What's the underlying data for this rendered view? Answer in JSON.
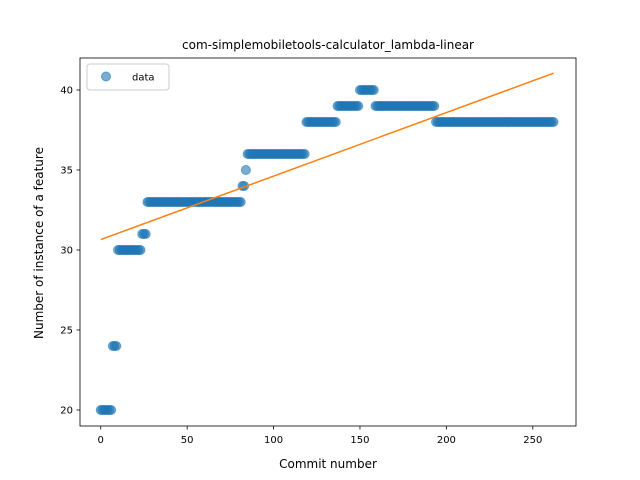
{
  "chart_data": {
    "type": "scatter",
    "title": "com-simplemobiletools-calculator_lambda-linear",
    "xlabel": "Commit number",
    "ylabel": "Number of instance of a feature",
    "xlim": [
      -12,
      275
    ],
    "ylim": [
      19.0,
      42.0
    ],
    "xticks": [
      0,
      50,
      100,
      150,
      200,
      250
    ],
    "yticks": [
      20,
      25,
      30,
      35,
      40
    ],
    "grid": false,
    "legend": {
      "placement": "top-left"
    },
    "series": [
      {
        "name": "data",
        "kind": "points",
        "color": "#1f77b4",
        "segments": [
          {
            "x_start": 0,
            "x_end": 6,
            "y": 20
          },
          {
            "x_start": 7,
            "x_end": 9,
            "y": 24
          },
          {
            "x_start": 10,
            "x_end": 23,
            "y": 30
          },
          {
            "x_start": 24,
            "x_end": 26,
            "y": 31
          },
          {
            "x_start": 27,
            "x_end": 81,
            "y": 33
          },
          {
            "x_start": 82,
            "x_end": 83,
            "y": 34
          },
          {
            "x_start": 84,
            "x_end": 84,
            "y": 35
          },
          {
            "x_start": 85,
            "x_end": 118,
            "y": 36
          },
          {
            "x_start": 119,
            "x_end": 136,
            "y": 38
          },
          {
            "x_start": 137,
            "x_end": 149,
            "y": 39
          },
          {
            "x_start": 150,
            "x_end": 158,
            "y": 40
          },
          {
            "x_start": 159,
            "x_end": 193,
            "y": 39
          },
          {
            "x_start": 194,
            "x_end": 262,
            "y": 38
          }
        ]
      },
      {
        "kind": "line",
        "color": "#ff7f0e",
        "x": [
          0,
          262
        ],
        "y": [
          30.65,
          41.05
        ]
      }
    ]
  }
}
